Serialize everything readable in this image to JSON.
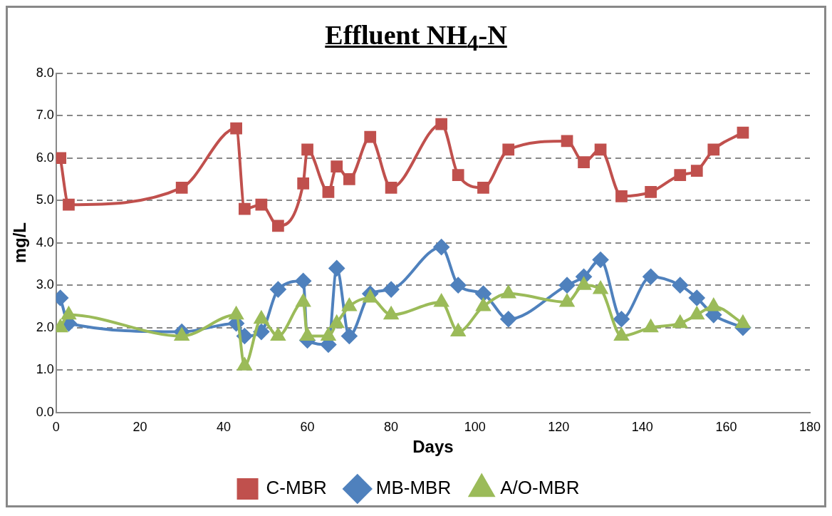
{
  "chart_data": {
    "type": "line",
    "title": "Effluent NH$_{4}$-N",
    "xlabel": "Days",
    "ylabel": "mg/L",
    "xlim": [
      0,
      180
    ],
    "xticks": [
      0,
      20,
      40,
      60,
      80,
      100,
      120,
      140,
      160,
      180
    ],
    "ylim": [
      0,
      8
    ],
    "yticks": [
      {
        "value": 0,
        "label": "0.0"
      },
      {
        "value": 1,
        "label": "1.0"
      },
      {
        "value": 2,
        "label": "2.0"
      },
      {
        "value": 3,
        "label": "3.0"
      },
      {
        "value": 4,
        "label": "4.0"
      },
      {
        "value": 5,
        "label": "5.0"
      },
      {
        "value": 6,
        "label": "6.0"
      },
      {
        "value": 7,
        "label": "7.0"
      },
      {
        "value": 8,
        "label": "8.0"
      }
    ],
    "grid": "y",
    "legend": "bottom",
    "line_style": "solid",
    "x": [
      1,
      3,
      30,
      43,
      45,
      49,
      53,
      59,
      60,
      65,
      67,
      70,
      75,
      80,
      92,
      96,
      102,
      108,
      122,
      126,
      130,
      135,
      142,
      149,
      153,
      157,
      164
    ],
    "series": [
      {
        "name": "C-MBR",
        "color": "#c0504d",
        "marker": "square",
        "values": [
          6.0,
          4.9,
          5.3,
          6.7,
          4.8,
          4.9,
          4.4,
          5.4,
          6.2,
          5.2,
          5.8,
          5.5,
          6.5,
          5.3,
          6.8,
          5.6,
          5.3,
          6.2,
          6.4,
          5.9,
          6.2,
          5.1,
          5.2,
          5.6,
          5.7,
          6.2,
          6.6
        ]
      },
      {
        "name": "MB-MBR",
        "color": "#4f81bd",
        "marker": "diamond",
        "values": [
          2.7,
          2.1,
          1.9,
          2.1,
          1.8,
          1.9,
          2.9,
          3.1,
          1.7,
          1.6,
          3.4,
          1.8,
          2.8,
          2.9,
          3.9,
          3.0,
          2.8,
          2.2,
          3.0,
          3.2,
          3.6,
          2.2,
          3.2,
          3.0,
          2.7,
          2.3,
          2.0
        ]
      },
      {
        "name": "A/O-MBR",
        "color": "#9bbb59",
        "marker": "triangle",
        "values": [
          2.0,
          2.3,
          1.8,
          2.3,
          1.1,
          2.2,
          1.8,
          2.6,
          1.8,
          1.8,
          2.1,
          2.5,
          2.7,
          2.3,
          2.6,
          1.9,
          2.5,
          2.8,
          2.6,
          3.0,
          2.9,
          1.8,
          2.0,
          2.1,
          2.3,
          2.5,
          2.1
        ]
      }
    ]
  }
}
